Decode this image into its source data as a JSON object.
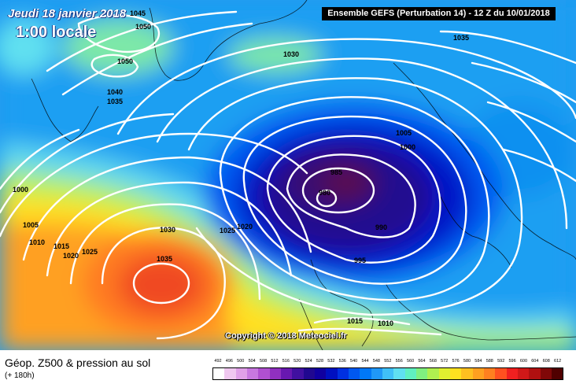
{
  "header": {
    "date_line": "Jeudi 18 janvier 2018",
    "time_line": "1:00 locale",
    "model_box": "Ensemble GEFS  (Perturbation 14)  -  12 Z du 10/01/2018"
  },
  "copyright": "Copyright © 2018 Meteociel.fr",
  "isobar_labels": [
    {
      "text": "1045"
    },
    {
      "text": "1050"
    },
    {
      "text": "1050"
    },
    {
      "text": "1040"
    },
    {
      "text": "1035"
    },
    {
      "text": "1030"
    },
    {
      "text": "1035"
    },
    {
      "text": "1005"
    },
    {
      "text": "1000"
    },
    {
      "text": "985"
    },
    {
      "text": "980"
    },
    {
      "text": "990"
    },
    {
      "text": "995"
    },
    {
      "text": "1000"
    },
    {
      "text": "1005"
    },
    {
      "text": "1010"
    },
    {
      "text": "1015"
    },
    {
      "text": "1020"
    },
    {
      "text": "1025"
    },
    {
      "text": "1030"
    },
    {
      "text": "1025"
    },
    {
      "text": "1020"
    },
    {
      "text": "1035"
    },
    {
      "text": "1015"
    },
    {
      "text": "1010"
    }
  ],
  "legend": {
    "title": "Géop. Z500 & pression au sol",
    "subtitle": "(+ 180h)",
    "ticks": [
      "492",
      "496",
      "500",
      "504",
      "508",
      "512",
      "516",
      "520",
      "524",
      "528",
      "532",
      "536",
      "540",
      "544",
      "548",
      "552",
      "556",
      "560",
      "564",
      "568",
      "572",
      "576",
      "580",
      "584",
      "588",
      "592",
      "596",
      "600",
      "604",
      "608",
      "612"
    ],
    "colors": [
      "#ffffff",
      "#f0c8f0",
      "#e0a0e8",
      "#c878e0",
      "#b050d0",
      "#9030c0",
      "#6818b0",
      "#4010a0",
      "#200890",
      "#1000a0",
      "#0010c0",
      "#0030e0",
      "#0058f0",
      "#0078f8",
      "#2098f8",
      "#40c0f8",
      "#60e0f0",
      "#60f0c0",
      "#80f080",
      "#b0f050",
      "#e0f030",
      "#ffe020",
      "#ffc020",
      "#ffa020",
      "#ff8020",
      "#ff5020",
      "#f02020",
      "#d01818",
      "#b01010",
      "#800808",
      "#500000"
    ]
  }
}
